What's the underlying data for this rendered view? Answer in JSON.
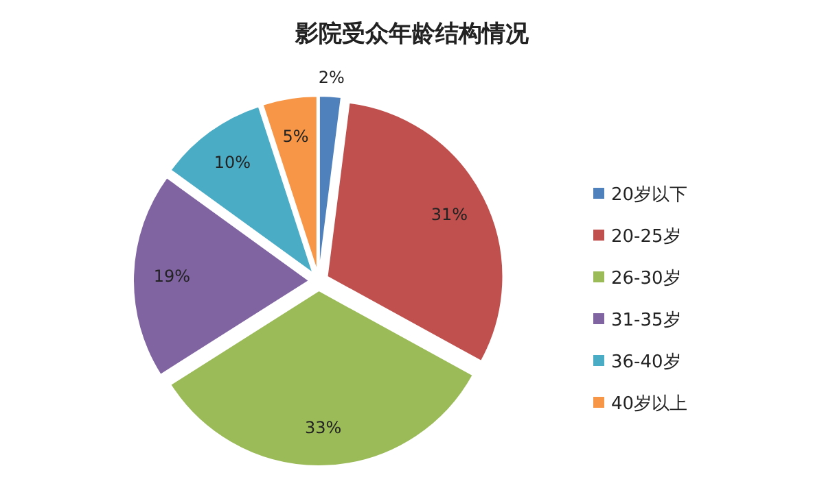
{
  "chart_data": {
    "type": "pie",
    "title": "影院受众年龄结构情况",
    "categories": [
      "20岁以下",
      "20-25岁",
      "26-30岁",
      "31-35岁",
      "36-40岁",
      "40岁以上"
    ],
    "values": [
      2,
      31,
      33,
      19,
      10,
      5
    ],
    "colors": [
      "#4f81bd",
      "#c0504d",
      "#9bbb59",
      "#8064a2",
      "#4bacc6",
      "#f79646"
    ],
    "value_labels": [
      "2%",
      "31%",
      "33%",
      "19%",
      "10%",
      "5%"
    ],
    "legend": "right"
  }
}
